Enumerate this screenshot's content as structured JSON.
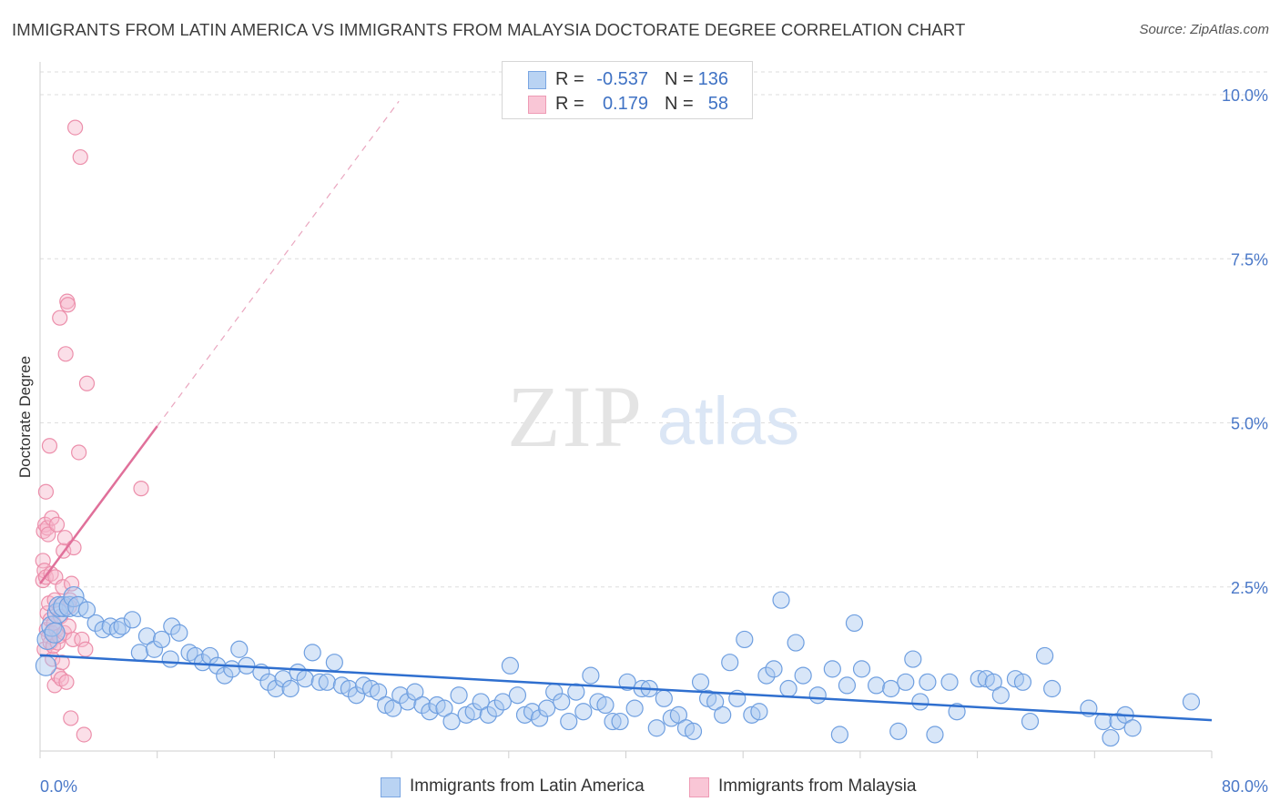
{
  "title": "IMMIGRANTS FROM LATIN AMERICA VS IMMIGRANTS FROM MALAYSIA DOCTORATE DEGREE CORRELATION CHART",
  "source": "Source: ZipAtlas.com",
  "watermark": {
    "zip": "ZIP",
    "atlas": "atlas"
  },
  "legend": {
    "rows": [
      {
        "r_label": "R =",
        "r_value": "-0.537",
        "n_label": "N =",
        "n_value": "136"
      },
      {
        "r_label": "R =",
        "r_value": "0.179",
        "n_label": "N =",
        "n_value": "58"
      }
    ]
  },
  "colors": {
    "blue_fill": "#a9c8f0",
    "blue_stroke": "#6f9fe0",
    "blue_line": "#2f6fcf",
    "pink_fill": "#f7b8cc",
    "pink_stroke": "#ec8fab",
    "pink_line": "#e0709a",
    "axis_label": "#4a78c8",
    "grid": "#dedede"
  },
  "chart_data": {
    "type": "scatter",
    "title": "IMMIGRANTS FROM LATIN AMERICA VS IMMIGRANTS FROM MALAYSIA DOCTORATE DEGREE CORRELATION CHART",
    "xlabel": "",
    "ylabel": "Doctorate Degree",
    "xlim": [
      0,
      80
    ],
    "ylim": [
      0,
      10.5
    ],
    "x_tick_labels": [
      "0.0%",
      "80.0%"
    ],
    "y_tick_values": [
      2.5,
      5.0,
      7.5,
      10.0
    ],
    "y_tick_labels": [
      "2.5%",
      "5.0%",
      "7.5%",
      "10.0%"
    ],
    "grid": true,
    "series": [
      {
        "name": "Immigrants from Latin America",
        "color": "#6f9fe0",
        "R": -0.537,
        "N": 136,
        "trend": {
          "x": [
            0,
            80
          ],
          "y": [
            1.46,
            0.47
          ]
        },
        "points": [
          [
            0.4,
            1.3
          ],
          [
            0.5,
            1.7
          ],
          [
            0.8,
            1.9
          ],
          [
            1.0,
            1.8
          ],
          [
            1.2,
            2.1
          ],
          [
            1.3,
            2.2
          ],
          [
            1.6,
            2.2
          ],
          [
            2.0,
            2.2
          ],
          [
            2.3,
            2.35
          ],
          [
            2.6,
            2.2
          ],
          [
            3.2,
            2.15
          ],
          [
            3.8,
            1.95
          ],
          [
            4.3,
            1.85
          ],
          [
            4.8,
            1.9
          ],
          [
            5.3,
            1.85
          ],
          [
            5.6,
            1.9
          ],
          [
            6.3,
            2.0
          ],
          [
            6.8,
            1.5
          ],
          [
            7.3,
            1.75
          ],
          [
            7.8,
            1.55
          ],
          [
            8.3,
            1.7
          ],
          [
            8.9,
            1.4
          ],
          [
            9.0,
            1.9
          ],
          [
            9.5,
            1.8
          ],
          [
            10.2,
            1.5
          ],
          [
            10.6,
            1.45
          ],
          [
            11.1,
            1.35
          ],
          [
            11.6,
            1.45
          ],
          [
            12.1,
            1.3
          ],
          [
            12.6,
            1.15
          ],
          [
            13.1,
            1.25
          ],
          [
            13.6,
            1.55
          ],
          [
            14.1,
            1.3
          ],
          [
            15.1,
            1.2
          ],
          [
            15.6,
            1.05
          ],
          [
            16.1,
            0.95
          ],
          [
            16.6,
            1.1
          ],
          [
            17.1,
            0.95
          ],
          [
            17.6,
            1.2
          ],
          [
            18.1,
            1.1
          ],
          [
            18.6,
            1.5
          ],
          [
            19.1,
            1.05
          ],
          [
            19.6,
            1.05
          ],
          [
            20.1,
            1.35
          ],
          [
            20.6,
            1.0
          ],
          [
            21.1,
            0.95
          ],
          [
            21.6,
            0.85
          ],
          [
            22.1,
            1.0
          ],
          [
            22.6,
            0.95
          ],
          [
            23.1,
            0.9
          ],
          [
            23.6,
            0.7
          ],
          [
            24.1,
            0.65
          ],
          [
            24.6,
            0.85
          ],
          [
            25.1,
            0.75
          ],
          [
            25.6,
            0.9
          ],
          [
            26.1,
            0.7
          ],
          [
            26.6,
            0.6
          ],
          [
            27.1,
            0.7
          ],
          [
            27.6,
            0.65
          ],
          [
            28.1,
            0.45
          ],
          [
            28.6,
            0.85
          ],
          [
            29.1,
            0.55
          ],
          [
            29.6,
            0.6
          ],
          [
            30.1,
            0.75
          ],
          [
            30.6,
            0.55
          ],
          [
            31.1,
            0.65
          ],
          [
            31.6,
            0.75
          ],
          [
            32.1,
            1.3
          ],
          [
            32.6,
            0.85
          ],
          [
            33.1,
            0.55
          ],
          [
            33.6,
            0.6
          ],
          [
            34.1,
            0.5
          ],
          [
            34.6,
            0.65
          ],
          [
            35.1,
            0.9
          ],
          [
            35.6,
            0.75
          ],
          [
            36.1,
            0.45
          ],
          [
            36.6,
            0.9
          ],
          [
            37.1,
            0.6
          ],
          [
            37.6,
            1.15
          ],
          [
            38.1,
            0.75
          ],
          [
            38.6,
            0.7
          ],
          [
            39.1,
            0.45
          ],
          [
            39.6,
            0.45
          ],
          [
            40.1,
            1.05
          ],
          [
            40.6,
            0.65
          ],
          [
            41.1,
            0.95
          ],
          [
            41.6,
            0.95
          ],
          [
            42.1,
            0.35
          ],
          [
            42.6,
            0.8
          ],
          [
            43.1,
            0.5
          ],
          [
            43.6,
            0.55
          ],
          [
            44.1,
            0.35
          ],
          [
            44.6,
            0.3
          ],
          [
            45.1,
            1.05
          ],
          [
            45.6,
            0.8
          ],
          [
            46.1,
            0.75
          ],
          [
            46.6,
            0.55
          ],
          [
            47.1,
            1.35
          ],
          [
            47.6,
            0.8
          ],
          [
            48.1,
            1.7
          ],
          [
            48.6,
            0.55
          ],
          [
            49.1,
            0.6
          ],
          [
            49.6,
            1.15
          ],
          [
            50.1,
            1.25
          ],
          [
            50.6,
            2.3
          ],
          [
            51.1,
            0.95
          ],
          [
            51.6,
            1.65
          ],
          [
            52.1,
            1.15
          ],
          [
            53.1,
            0.85
          ],
          [
            54.1,
            1.25
          ],
          [
            54.6,
            0.25
          ],
          [
            55.1,
            1.0
          ],
          [
            55.6,
            1.95
          ],
          [
            56.1,
            1.25
          ],
          [
            57.1,
            1.0
          ],
          [
            58.1,
            0.95
          ],
          [
            58.6,
            0.3
          ],
          [
            59.1,
            1.05
          ],
          [
            59.6,
            1.4
          ],
          [
            60.1,
            0.75
          ],
          [
            60.6,
            1.05
          ],
          [
            61.1,
            0.25
          ],
          [
            62.1,
            1.05
          ],
          [
            62.6,
            0.6
          ],
          [
            64.1,
            1.1
          ],
          [
            64.6,
            1.1
          ],
          [
            65.1,
            1.05
          ],
          [
            65.6,
            0.85
          ],
          [
            66.6,
            1.1
          ],
          [
            67.1,
            1.05
          ],
          [
            67.6,
            0.45
          ],
          [
            68.6,
            1.45
          ],
          [
            69.1,
            0.95
          ],
          [
            71.6,
            0.65
          ],
          [
            72.6,
            0.45
          ],
          [
            73.1,
            0.2
          ],
          [
            73.6,
            0.45
          ],
          [
            74.1,
            0.55
          ],
          [
            74.6,
            0.35
          ],
          [
            78.6,
            0.75
          ]
        ]
      },
      {
        "name": "Immigrants from Malaysia",
        "color": "#ec8fab",
        "R": 0.179,
        "N": 58,
        "trend": {
          "x": [
            0,
            8
          ],
          "y": [
            2.55,
            4.95
          ]
        },
        "trend_extension": {
          "x": [
            8,
            24.5
          ],
          "y": [
            4.95,
            9.9
          ]
        },
        "points": [
          [
            0.2,
            2.6
          ],
          [
            0.2,
            2.9
          ],
          [
            0.25,
            3.35
          ],
          [
            0.3,
            1.55
          ],
          [
            0.3,
            2.75
          ],
          [
            0.35,
            3.45
          ],
          [
            0.4,
            3.95
          ],
          [
            0.4,
            2.65
          ],
          [
            0.45,
            1.85
          ],
          [
            0.5,
            3.4
          ],
          [
            0.5,
            2.1
          ],
          [
            0.55,
            3.3
          ],
          [
            0.6,
            1.75
          ],
          [
            0.6,
            2.25
          ],
          [
            0.65,
            4.65
          ],
          [
            0.7,
            1.65
          ],
          [
            0.7,
            2.0
          ],
          [
            0.75,
            2.7
          ],
          [
            0.8,
            3.55
          ],
          [
            0.8,
            1.8
          ],
          [
            0.85,
            1.4
          ],
          [
            0.9,
            1.6
          ],
          [
            0.95,
            1.95
          ],
          [
            1.0,
            1.0
          ],
          [
            1.0,
            2.3
          ],
          [
            1.05,
            2.65
          ],
          [
            1.1,
            1.85
          ],
          [
            1.15,
            3.45
          ],
          [
            1.2,
            1.65
          ],
          [
            1.25,
            1.15
          ],
          [
            1.3,
            1.75
          ],
          [
            1.35,
            6.6
          ],
          [
            1.4,
            2.05
          ],
          [
            1.45,
            1.1
          ],
          [
            1.5,
            1.35
          ],
          [
            1.55,
            2.5
          ],
          [
            1.6,
            3.05
          ],
          [
            1.65,
            1.8
          ],
          [
            1.7,
            3.25
          ],
          [
            1.75,
            6.05
          ],
          [
            1.8,
            1.05
          ],
          [
            1.85,
            6.85
          ],
          [
            1.9,
            6.8
          ],
          [
            1.95,
            1.9
          ],
          [
            2.0,
            2.2
          ],
          [
            2.05,
            2.3
          ],
          [
            2.1,
            0.5
          ],
          [
            2.15,
            2.55
          ],
          [
            2.25,
            1.7
          ],
          [
            2.3,
            3.1
          ],
          [
            2.4,
            9.5
          ],
          [
            2.65,
            4.55
          ],
          [
            2.75,
            9.05
          ],
          [
            2.85,
            1.7
          ],
          [
            3.0,
            0.25
          ],
          [
            3.1,
            1.55
          ],
          [
            3.2,
            5.6
          ],
          [
            6.9,
            4.0
          ]
        ]
      }
    ]
  },
  "bottom_legend": [
    {
      "label": "Immigrants from Latin America"
    },
    {
      "label": "Immigrants from Malaysia"
    }
  ]
}
